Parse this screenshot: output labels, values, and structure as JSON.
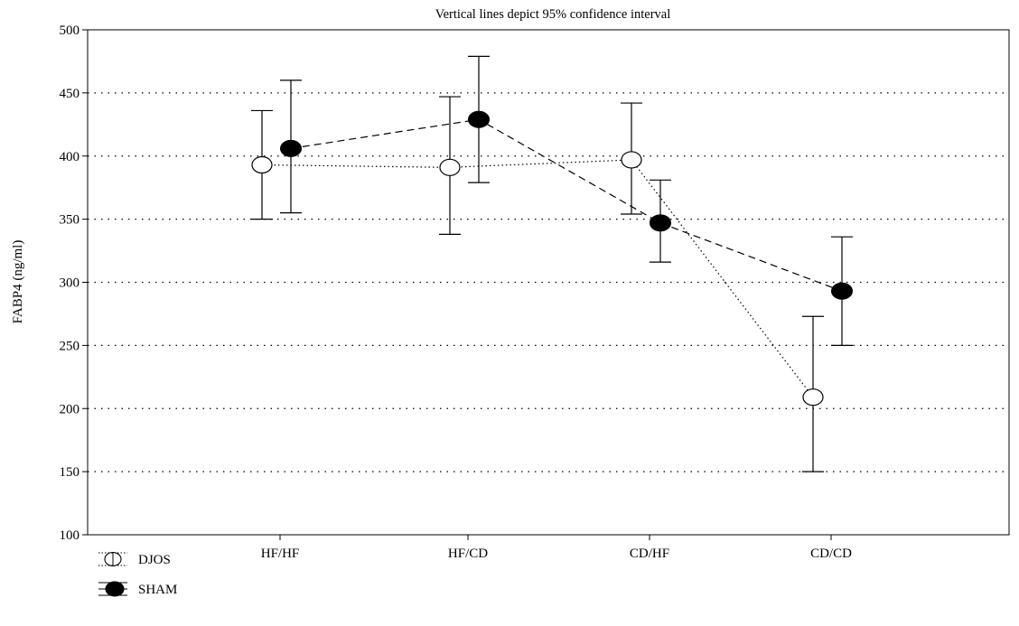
{
  "chart_data": {
    "type": "line",
    "title": "Vertical lines depict 95% confidence interval",
    "xlabel": "",
    "ylabel": "FABP4 (ng/ml)",
    "categories": [
      "HF/HF",
      "HF/CD",
      "CD/HF",
      "CD/CD"
    ],
    "ylim": [
      100,
      500
    ],
    "yticks": [
      100,
      150,
      200,
      250,
      300,
      350,
      400,
      450,
      500
    ],
    "grid": "horizontal dotted",
    "legend_position": "bottom-left",
    "series": [
      {
        "name": "DJOS",
        "marker": "open-circle",
        "line_style": "dotted",
        "color": "#000000",
        "values": [
          393,
          391,
          397,
          209
        ],
        "ci_low": [
          350,
          338,
          354,
          150
        ],
        "ci_high": [
          436,
          447,
          442,
          273
        ]
      },
      {
        "name": "SHAM",
        "marker": "filled-circle",
        "line_style": "dashed",
        "color": "#000000",
        "values": [
          406,
          429,
          347,
          293
        ],
        "ci_low": [
          355,
          379,
          316,
          250
        ],
        "ci_high": [
          460,
          479,
          381,
          336
        ]
      }
    ]
  }
}
